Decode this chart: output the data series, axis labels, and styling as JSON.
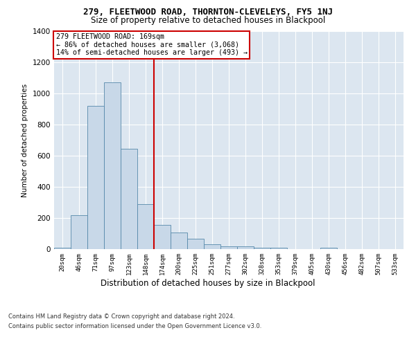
{
  "title1": "279, FLEETWOOD ROAD, THORNTON-CLEVELEYS, FY5 1NJ",
  "title2": "Size of property relative to detached houses in Blackpool",
  "xlabel": "Distribution of detached houses by size in Blackpool",
  "ylabel": "Number of detached properties",
  "categories": [
    "20sqm",
    "46sqm",
    "71sqm",
    "97sqm",
    "123sqm",
    "148sqm",
    "174sqm",
    "200sqm",
    "225sqm",
    "251sqm",
    "277sqm",
    "302sqm",
    "328sqm",
    "353sqm",
    "379sqm",
    "405sqm",
    "430sqm",
    "456sqm",
    "482sqm",
    "507sqm",
    "533sqm"
  ],
  "values": [
    10,
    220,
    920,
    1070,
    645,
    290,
    155,
    105,
    65,
    32,
    20,
    17,
    11,
    10,
    0,
    0,
    10,
    0,
    0,
    0,
    0
  ],
  "bar_color": "#c8d8e8",
  "bar_edge_color": "#5588aa",
  "vline_x": 5.5,
  "vline_color": "#cc0000",
  "annotation_text": "279 FLEETWOOD ROAD: 169sqm\n← 86% of detached houses are smaller (3,068)\n14% of semi-detached houses are larger (493) →",
  "annotation_box_color": "#ffffff",
  "annotation_box_edge": "#cc0000",
  "ylim": [
    0,
    1400
  ],
  "yticks": [
    0,
    200,
    400,
    600,
    800,
    1000,
    1200,
    1400
  ],
  "footer1": "Contains HM Land Registry data © Crown copyright and database right 2024.",
  "footer2": "Contains public sector information licensed under the Open Government Licence v3.0.",
  "bg_color": "#dce6f0",
  "fig_bg_color": "#ffffff"
}
